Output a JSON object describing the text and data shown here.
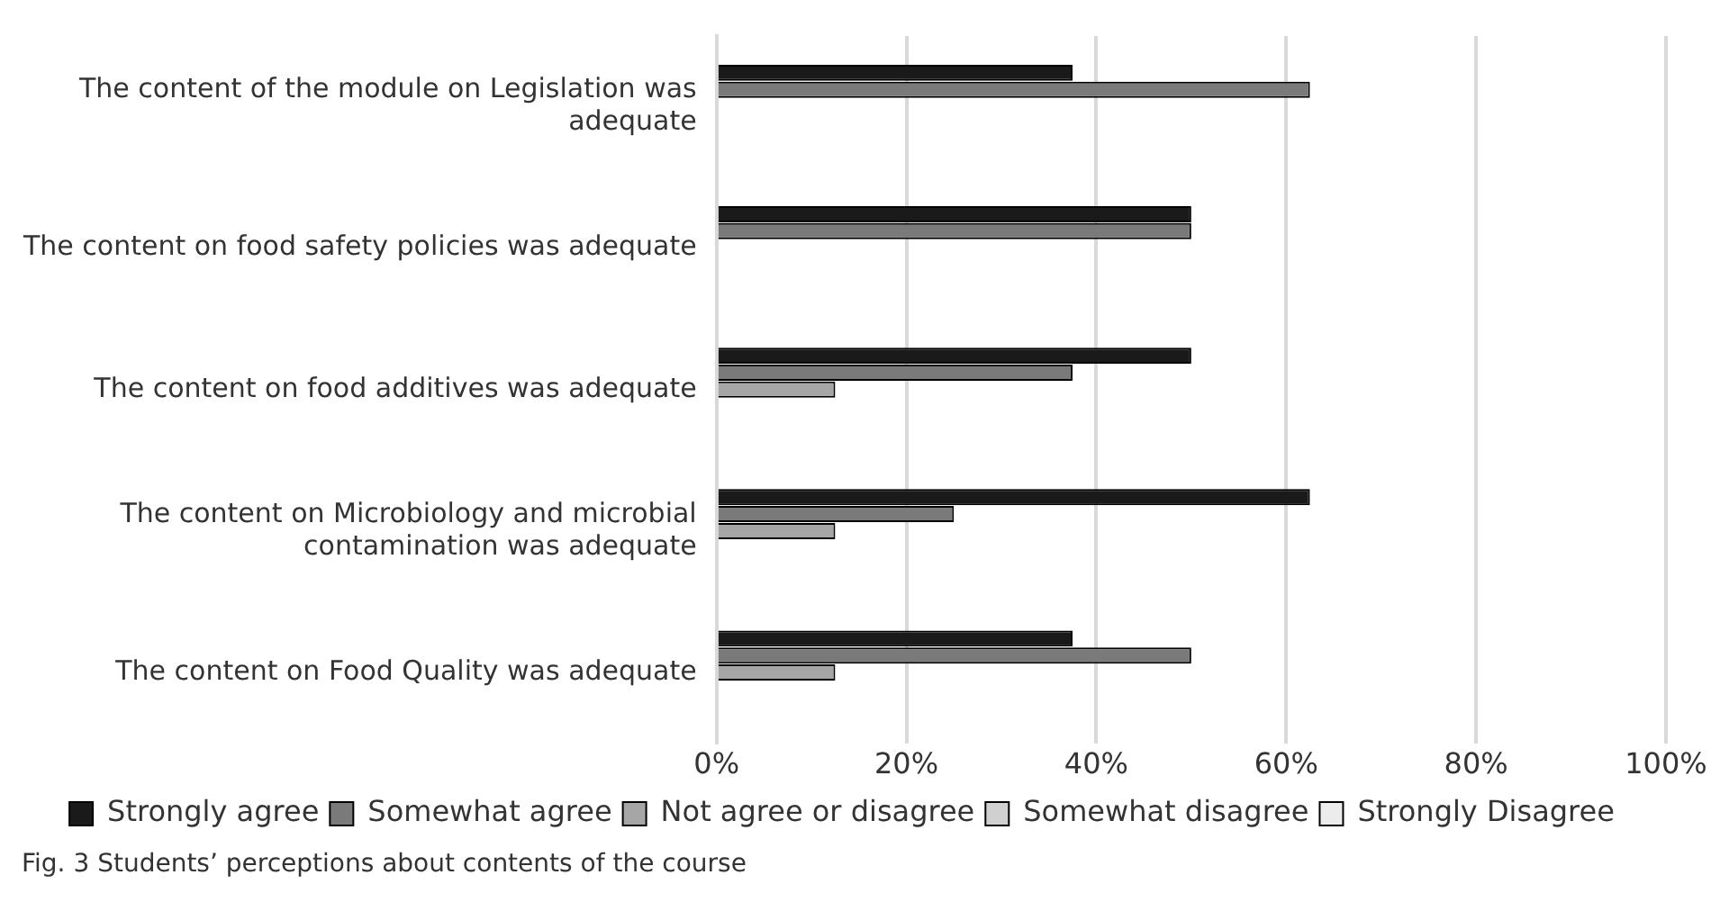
{
  "chart_data": {
    "type": "bar",
    "orientation": "horizontal",
    "categories": [
      "The content of the module on Legislation was adequate",
      "The content on food safety policies was adequate",
      "The content on food additives was adequate",
      "The content on Microbiology and microbial contamination was adequate",
      "The content on Food Quality was adequate"
    ],
    "series": [
      {
        "name": "Strongly agree",
        "color": "#1a1a1a",
        "values": [
          37.5,
          50,
          50,
          62.5,
          37.5
        ]
      },
      {
        "name": "Somewhat agree",
        "color": "#7a7a7a",
        "values": [
          62.5,
          50,
          37.5,
          25,
          50
        ]
      },
      {
        "name": "Not agree or disagree",
        "color": "#a6a6a6",
        "values": [
          0,
          0,
          12.5,
          12.5,
          12.5
        ]
      },
      {
        "name": "Somewhat disagree",
        "color": "#d0d0d0",
        "values": [
          0,
          0,
          0,
          0,
          0
        ]
      },
      {
        "name": "Strongly Disagree",
        "color": "#ececec",
        "values": [
          0,
          0,
          0,
          0,
          0
        ]
      }
    ],
    "xlim": [
      0,
      100
    ],
    "xticks": [
      {
        "value": 0,
        "label": "0%"
      },
      {
        "value": 20,
        "label": "20%"
      },
      {
        "value": 40,
        "label": "40%"
      },
      {
        "value": 60,
        "label": "60%"
      },
      {
        "value": 80,
        "label": "80%"
      },
      {
        "value": 100,
        "label": "100%"
      }
    ],
    "grid": "x",
    "legend": "bottom",
    "annotations": [
      "Fig. 3 Students’ perceptions about contents of the course"
    ]
  }
}
